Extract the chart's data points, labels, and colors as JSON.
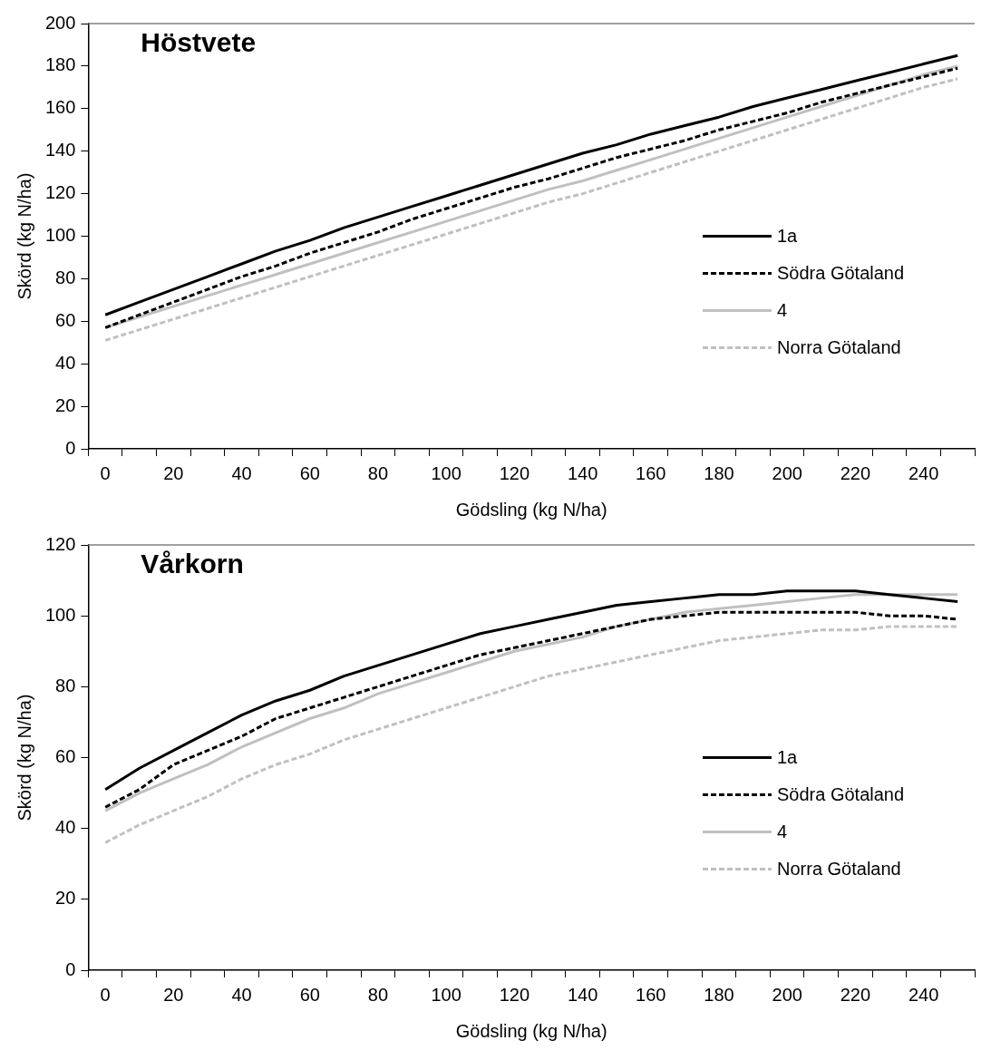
{
  "chart_data": [
    {
      "type": "line",
      "title": "Höstvete",
      "xlabel": "Gödsling (kg N/ha)",
      "ylabel": "Skörd (kg N/ha)",
      "categories": [
        "0",
        null,
        "20",
        null,
        "40",
        null,
        "60",
        null,
        "80",
        null,
        "100",
        null,
        "120",
        null,
        "140",
        null,
        "160",
        null,
        "180",
        null,
        "200",
        null,
        "220",
        null,
        "240",
        null
      ],
      "ylim": [
        0,
        200
      ],
      "yticks": [
        0,
        20,
        40,
        60,
        80,
        100,
        120,
        140,
        160,
        180,
        200
      ],
      "grid": false,
      "legend": "right",
      "marker": "none",
      "series": [
        {
          "name": "1a",
          "color": "#000000",
          "line_style": "solid",
          "values": [
            63,
            69,
            75,
            81,
            87,
            93,
            98,
            104,
            109,
            114,
            119,
            124,
            129,
            134,
            139,
            143,
            148,
            152,
            156,
            161,
            165,
            169,
            173,
            177,
            181,
            185
          ]
        },
        {
          "name": "Södra Götaland",
          "color": "#000000",
          "line_style": "dashed",
          "values": [
            57,
            63,
            69,
            75,
            81,
            86,
            92,
            97,
            102,
            108,
            113,
            118,
            123,
            127,
            132,
            137,
            141,
            145,
            150,
            154,
            158,
            163,
            167,
            171,
            175,
            179
          ]
        },
        {
          "name": "4",
          "color": "#c0c0c0",
          "line_style": "solid",
          "values": [
            57,
            62,
            67,
            72,
            77,
            82,
            87,
            92,
            97,
            102,
            107,
            112,
            117,
            122,
            126,
            131,
            136,
            141,
            146,
            151,
            156,
            161,
            166,
            171,
            176,
            180
          ]
        },
        {
          "name": "Norra Götaland",
          "color": "#c0c0c0",
          "line_style": "dashed",
          "values": [
            51,
            56,
            61,
            66,
            71,
            76,
            81,
            86,
            91,
            96,
            101,
            106,
            111,
            116,
            120,
            125,
            130,
            135,
            140,
            145,
            150,
            155,
            160,
            165,
            170,
            174
          ]
        }
      ]
    },
    {
      "type": "line",
      "title": "Vårkorn",
      "xlabel": "Gödsling (kg N/ha)",
      "ylabel": "Skörd (kg N/ha)",
      "categories": [
        "0",
        null,
        "20",
        null,
        "40",
        null,
        "60",
        null,
        "80",
        null,
        "100",
        null,
        "120",
        null,
        "140",
        null,
        "160",
        null,
        "180",
        null,
        "200",
        null,
        "220",
        null,
        "240",
        null
      ],
      "ylim": [
        0,
        120
      ],
      "yticks": [
        0,
        20,
        40,
        60,
        80,
        100,
        120
      ],
      "grid": false,
      "legend": "right",
      "marker": "none",
      "series": [
        {
          "name": "1a",
          "color": "#000000",
          "line_style": "solid",
          "values": [
            51,
            57,
            62,
            67,
            72,
            76,
            79,
            83,
            86,
            89,
            92,
            95,
            97,
            99,
            101,
            103,
            104,
            105,
            106,
            106,
            107,
            107,
            107,
            106,
            105,
            104
          ]
        },
        {
          "name": "Södra Götaland",
          "color": "#000000",
          "line_style": "dashed",
          "values": [
            46,
            51,
            58,
            62,
            66,
            71,
            74,
            77,
            80,
            83,
            86,
            89,
            91,
            93,
            95,
            97,
            99,
            100,
            101,
            101,
            101,
            101,
            101,
            100,
            100,
            99
          ]
        },
        {
          "name": "4",
          "color": "#c0c0c0",
          "line_style": "solid",
          "values": [
            45,
            50,
            54,
            58,
            63,
            67,
            71,
            74,
            78,
            81,
            84,
            87,
            90,
            92,
            94,
            97,
            99,
            101,
            102,
            103,
            104,
            105,
            106,
            106,
            106,
            106
          ]
        },
        {
          "name": "Norra Götaland",
          "color": "#c0c0c0",
          "line_style": "dashed",
          "values": [
            36,
            41,
            45,
            49,
            54,
            58,
            61,
            65,
            68,
            71,
            74,
            77,
            80,
            83,
            85,
            87,
            89,
            91,
            93,
            94,
            95,
            96,
            96,
            97,
            97,
            97
          ]
        }
      ]
    }
  ]
}
